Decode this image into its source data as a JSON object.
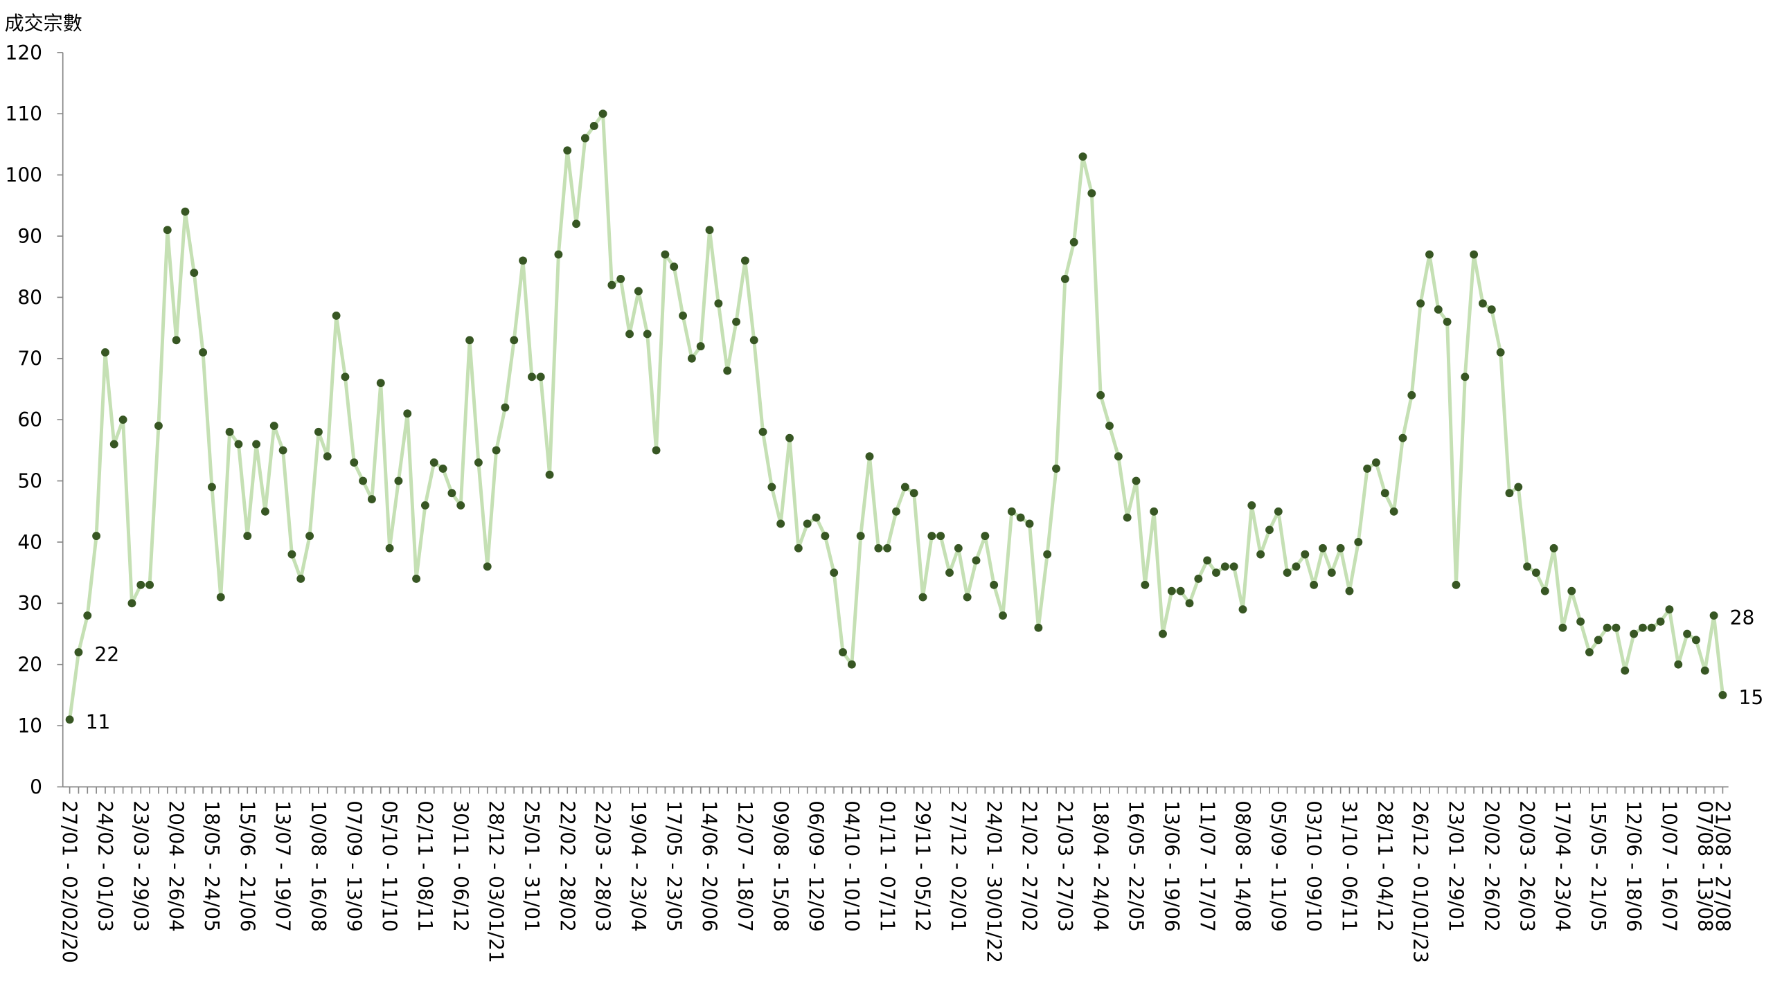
{
  "chart_data": {
    "type": "line",
    "y_label": "成交宗數",
    "ylim": [
      0,
      120
    ],
    "yticks": [
      0,
      10,
      20,
      30,
      40,
      50,
      60,
      70,
      80,
      90,
      100,
      110,
      120
    ],
    "line_color": "#c5e0b4",
    "marker_color": "#375623",
    "labeled_points": [
      0,
      1,
      185,
      186
    ],
    "categories": [
      "27/01 - 02/02/20",
      null,
      null,
      null,
      "24/02 - 01/03",
      null,
      null,
      null,
      "23/03 - 29/03",
      null,
      null,
      null,
      "20/04 - 26/04",
      null,
      null,
      null,
      "18/05 - 24/05",
      null,
      null,
      null,
      "15/06 - 21/06",
      null,
      null,
      null,
      "13/07 - 19/07",
      null,
      null,
      null,
      "10/08 - 16/08",
      null,
      null,
      null,
      "07/09 - 13/09",
      null,
      null,
      null,
      "05/10 - 11/10",
      null,
      null,
      null,
      "02/11 - 08/11",
      null,
      null,
      null,
      "30/11 - 06/12",
      null,
      null,
      null,
      "28/12 - 03/01/21",
      null,
      null,
      null,
      "25/01 - 31/01",
      null,
      null,
      null,
      "22/02 - 28/02",
      null,
      null,
      null,
      "22/03 - 28/03",
      null,
      null,
      null,
      "19/04 - 23/04",
      null,
      null,
      null,
      "17/05 - 23/05",
      null,
      null,
      null,
      "14/06 - 20/06",
      null,
      null,
      null,
      "12/07 - 18/07",
      null,
      null,
      null,
      "09/08 - 15/08",
      null,
      null,
      null,
      "06/09 - 12/09",
      null,
      null,
      null,
      "04/10 - 10/10",
      null,
      null,
      null,
      "01/11 - 07/11",
      null,
      null,
      null,
      "29/11 - 05/12",
      null,
      null,
      null,
      "27/12 - 02/01",
      null,
      null,
      null,
      "24/01 - 30/01/22",
      null,
      null,
      null,
      "21/02 - 27/02",
      null,
      null,
      null,
      "21/03 - 27/03",
      null,
      null,
      null,
      "18/04 - 24/04",
      null,
      null,
      null,
      "16/05 - 22/05",
      null,
      null,
      null,
      "13/06 - 19/06",
      null,
      null,
      null,
      "11/07 - 17/07",
      null,
      null,
      null,
      "08/08 - 14/08",
      null,
      null,
      null,
      "05/09 - 11/09",
      null,
      null,
      null,
      "03/10 - 09/10",
      null,
      null,
      null,
      "31/10 - 06/11",
      null,
      null,
      null,
      "28/11 - 04/12",
      null,
      null,
      null,
      "26/12 - 01/01/23",
      null,
      null,
      null,
      "23/01 - 29/01",
      null,
      null,
      null,
      "20/02 - 26/02",
      null,
      null,
      null,
      "20/03 - 26/03",
      null,
      null,
      null,
      "17/04 - 23/04",
      null,
      null,
      null,
      "15/05 - 21/05",
      null,
      null,
      null,
      "12/06 - 18/06",
      null,
      null,
      null,
      "10/07 - 16/07",
      null,
      null,
      null,
      "07/08 - 13/08",
      null,
      "21/08 - 27/08"
    ],
    "values": [
      11,
      22,
      28,
      41,
      71,
      56,
      60,
      30,
      33,
      33,
      59,
      91,
      73,
      94,
      84,
      71,
      49,
      31,
      58,
      56,
      41,
      56,
      45,
      59,
      55,
      38,
      34,
      41,
      58,
      54,
      77,
      67,
      53,
      50,
      47,
      66,
      39,
      50,
      61,
      34,
      46,
      53,
      52,
      48,
      46,
      73,
      53,
      36,
      55,
      62,
      73,
      86,
      67,
      67,
      51,
      87,
      104,
      92,
      106,
      108,
      110,
      82,
      83,
      74,
      81,
      74,
      55,
      87,
      85,
      77,
      70,
      72,
      91,
      79,
      68,
      76,
      86,
      73,
      58,
      49,
      43,
      57,
      39,
      43,
      44,
      41,
      35,
      22,
      20,
      41,
      54,
      39,
      39,
      45,
      49,
      48,
      31,
      41,
      41,
      35,
      39,
      31,
      37,
      41,
      33,
      28,
      45,
      44,
      43,
      26,
      38,
      52,
      83,
      89,
      103,
      97,
      64,
      59,
      54,
      44,
      50,
      33,
      45,
      25,
      32,
      32,
      30,
      34,
      37,
      35,
      36,
      36,
      29,
      46,
      38,
      42,
      45,
      35,
      36,
      38,
      33,
      39,
      35,
      39,
      32,
      40,
      52,
      53,
      48,
      45,
      57,
      64,
      79,
      87,
      78,
      76,
      33,
      67,
      87,
      79,
      78,
      71,
      48,
      49,
      36,
      35,
      32,
      39,
      26,
      32,
      27,
      22,
      24,
      26,
      26,
      19,
      25,
      26,
      26,
      27,
      29,
      20,
      25,
      24,
      19,
      28,
      15
    ]
  }
}
